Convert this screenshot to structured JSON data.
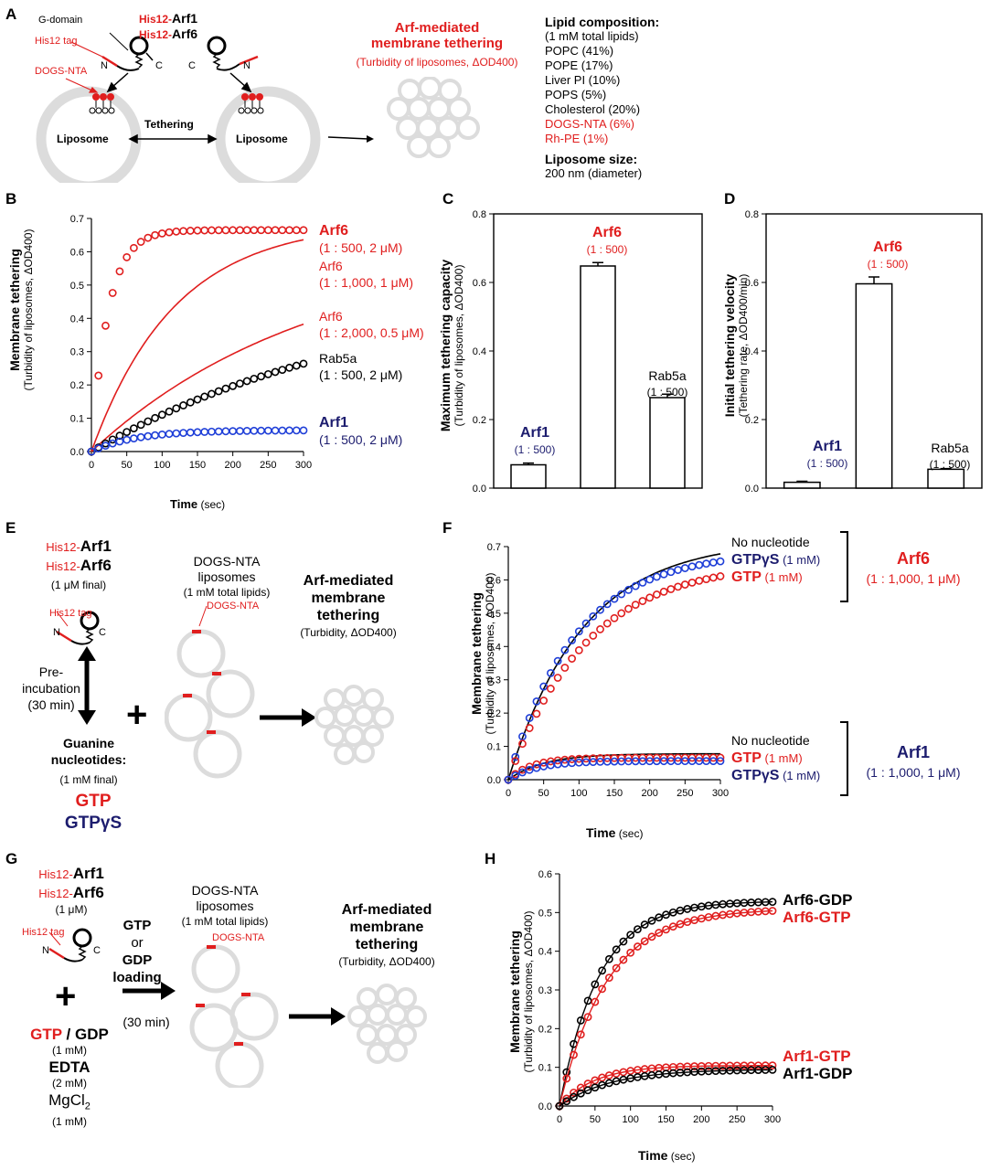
{
  "panels": {
    "a": "A",
    "b": "B",
    "c": "C",
    "d": "D",
    "e": "E",
    "f": "F",
    "g": "G",
    "h": "H"
  },
  "a": {
    "gdomain": "G-domain",
    "his1": "His12-",
    "arf1": "Arf1",
    "his2": "His12-",
    "arf6": "Arf6",
    "histag": "His12 tag",
    "dogs": "DOGS-NTA",
    "n1": "N",
    "c1": "C",
    "c2": "C",
    "n2": "N",
    "lipo1": "Liposome",
    "lipo2": "Liposome",
    "tether": "Tethering",
    "title1": "Arf-mediated",
    "title2": "membrane tethering",
    "subtitle": "(Turbidity of liposomes, ΔOD400)",
    "lipid_title": "Lipid composition:",
    "lipids": [
      "(1 mM total lipids)",
      "POPC (41%)",
      "POPE (17%)",
      "Liver PI (10%)",
      "POPS (5%)",
      "Cholesterol (20%)"
    ],
    "lipids_red": [
      "DOGS-NTA (6%)",
      "Rh-PE (1%)"
    ],
    "size_title": "Liposome size:",
    "size_value": "200 nm (diameter)"
  },
  "b": {
    "ylabel": "Membrane tethering",
    "ysub": "(Turbidity of liposomes, ΔOD400)",
    "xlabel": "Time",
    "xunit": " (sec)",
    "labels": [
      {
        "name": "Arf6",
        "cond": "(1 : 500, 2 μM)"
      },
      {
        "name": "Arf6",
        "cond": "(1 : 1,000, 1 μM)"
      },
      {
        "name": "Arf6",
        "cond": "(1 : 2,000, 0.5 μM)"
      },
      {
        "name": "Rab5a",
        "cond": "(1 : 500, 2 μM)"
      },
      {
        "name": "Arf1",
        "cond": "(1 : 500, 2 μM)"
      }
    ]
  },
  "c": {
    "ylabel": "Maximum tethering capacity",
    "ysub": "(Turbidity of liposomes, ΔOD400)",
    "bars": [
      {
        "name": "Arf1",
        "ratio": "(1 : 500)"
      },
      {
        "name": "Arf6",
        "ratio": "(1 : 500)"
      },
      {
        "name": "Rab5a",
        "ratio": "(1 : 500)"
      }
    ]
  },
  "d": {
    "ylabel": "Initial tethering velocity",
    "ysub": "(Tethering rate, ΔOD400/min)",
    "bars": [
      {
        "name": "Arf1",
        "ratio": "(1 : 500)"
      },
      {
        "name": "Arf6",
        "ratio": "(1 : 500)"
      },
      {
        "name": "Rab5a",
        "ratio": "(1 : 500)"
      }
    ]
  },
  "e": {
    "his1": "His12-",
    "arf1": "Arf1",
    "his2": "His12-",
    "arf6": "Arf6",
    "final": "(1 μM final)",
    "histag": "His12 tag",
    "n": "N",
    "c": "C",
    "pre1": "Pre-",
    "pre2": "incubation",
    "pre3": "(30 min)",
    "guan1": "Guanine",
    "guan2": "nucleotides:",
    "guan3": "(1 mM final)",
    "gtp": "GTP",
    "gtpgs": "GTPγS",
    "plus": "+",
    "lipo1": "DOGS-NTA",
    "lipo2": "liposomes",
    "lipo3": "(1 mM total lipids)",
    "dogs": "DOGS-NTA",
    "t1": "Arf-mediated",
    "t2": "membrane",
    "t3": "tethering",
    "t4": "(Turbidity, ΔOD400)"
  },
  "f": {
    "ylabel": "Membrane tethering",
    "ysub": "(Turbidity of liposomes, ΔOD400)",
    "xlabel": "Time",
    "xunit": " (sec)",
    "arf6_no": "No nucleotide",
    "arf6_gs": "GTPγS",
    "arf6_gs_c": " (1 mM)",
    "arf6_gtp": "GTP",
    "arf6_gtp_c": " (1 mM)",
    "arf6": "Arf6",
    "arf6_cond": "(1 : 1,000, 1 μM)",
    "arf1_no": "No nucleotide",
    "arf1_gtp": "GTP",
    "arf1_gtp_c": " (1 mM)",
    "arf1_gs": "GTPγS",
    "arf1_gs_c": " (1 mM)",
    "arf1": "Arf1",
    "arf1_cond": "(1 : 1,000, 1 μM)"
  },
  "g": {
    "his1": "His12-",
    "arf1": "Arf1",
    "his2": "His12-",
    "arf6": "Arf6",
    "conc": "(1 μM)",
    "histag": "His12 tag",
    "n": "N",
    "c": "C",
    "plus": "+",
    "gtp": "GTP",
    "slash": " / ",
    "gdp": "GDP",
    "gconc": "(1 mM)",
    "edta": "EDTA",
    "edta_c": "(2 mM)",
    "mg": "MgCl",
    "mg_sub": "2",
    "mg_c": "(1 mM)",
    "load1": "GTP",
    "load2": "or",
    "load3": "GDP",
    "load4": "loading",
    "load5": "(30 min)",
    "lipo1": "DOGS-NTA",
    "lipo2": "liposomes",
    "lipo3": "(1 mM total lipids)",
    "dogs": "DOGS-NTA",
    "t1": "Arf-mediated",
    "t2": "membrane",
    "t3": "tethering",
    "t4": "(Turbidity, ΔOD400)"
  },
  "h": {
    "ylabel": "Membrane tethering",
    "ysub": "(Turbidity of liposomes, ΔOD400)",
    "xlabel": "Time",
    "xunit": " (sec)",
    "l1": "Arf6-GDP",
    "l2": "Arf6-GTP",
    "l3": "Arf1-GTP",
    "l4": "Arf1-GDP"
  },
  "colors": {
    "red": "#e01e1e",
    "navy": "#1c1c6e",
    "blue": "#1f3fd8",
    "gray": "#dcdcdc"
  },
  "chart_data": [
    {
      "id": "B",
      "type": "line",
      "title": "",
      "xlabel": "Time (sec)",
      "ylabel": "Membrane tethering (Turbidity of liposomes, ΔOD400)",
      "xlim": [
        0,
        300
      ],
      "ylim": [
        0,
        0.7
      ],
      "xticks": [
        0,
        50,
        100,
        150,
        200,
        250,
        300
      ],
      "yticks": [
        0,
        0.1,
        0.2,
        0.3,
        0.4,
        0.5,
        0.6,
        0.7
      ],
      "series": [
        {
          "name": "Arf6 (1 : 500, 2 μM)",
          "style": "markers",
          "color": "#e01e1e",
          "A": 0.665,
          "k": 0.042
        },
        {
          "name": "Arf6 (1 : 1,000, 1 μM)",
          "style": "line",
          "color": "#e01e1e",
          "A": 0.69,
          "k": 0.0085
        },
        {
          "name": "Arf6 (1 : 2,000, 0.5 μM)",
          "style": "line",
          "color": "#e01e1e",
          "A": 0.62,
          "k": 0.0032
        },
        {
          "name": "Rab5a (1 : 500, 2 μM)",
          "style": "markers",
          "color": "#000000",
          "A": 0.5,
          "k": 0.0025
        },
        {
          "name": "Arf1 (1 : 500, 2 μM)",
          "style": "markers",
          "color": "#1f3fd8",
          "A": 0.064,
          "k": 0.016
        }
      ]
    },
    {
      "id": "C",
      "type": "bar",
      "categories": [
        "Arf1",
        "Arf6",
        "Rab5a"
      ],
      "values": [
        0.068,
        0.648,
        0.264
      ],
      "errors": [
        0.005,
        0.01,
        0.01
      ],
      "ylabel": "Maximum tethering capacity (Turbidity of liposomes, ΔOD400)",
      "ylim": [
        0,
        0.8
      ],
      "yticks": [
        0,
        0.2,
        0.4,
        0.6,
        0.8
      ]
    },
    {
      "id": "D",
      "type": "bar",
      "categories": [
        "Arf1",
        "Arf6",
        "Rab5a"
      ],
      "values": [
        0.017,
        0.596,
        0.055
      ],
      "errors": [
        0.003,
        0.02,
        0.002
      ],
      "ylabel": "Initial tethering velocity (Tethering rate, ΔOD400/min)",
      "ylim": [
        0,
        0.8
      ],
      "yticks": [
        0,
        0.2,
        0.4,
        0.6,
        0.8
      ]
    },
    {
      "id": "F",
      "type": "line",
      "xlabel": "Time (sec)",
      "ylabel": "Membrane tethering (Turbidity of liposomes, ΔOD400)",
      "xlim": [
        0,
        300
      ],
      "ylim": [
        0,
        0.7
      ],
      "xticks": [
        0,
        50,
        100,
        150,
        200,
        250,
        300
      ],
      "yticks": [
        0,
        0.1,
        0.2,
        0.3,
        0.4,
        0.5,
        0.6,
        0.7
      ],
      "series": [
        {
          "name": "Arf6 No nucleotide",
          "style": "line",
          "color": "#000000",
          "A": 0.72,
          "k": 0.0095
        },
        {
          "name": "Arf6 GTPγS (1 mM)",
          "style": "markers",
          "color": "#1f3fd8",
          "A": 0.685,
          "k": 0.0105
        },
        {
          "name": "Arf6 GTP (1 mM)",
          "style": "markers",
          "color": "#e01e1e",
          "A": 0.655,
          "k": 0.009
        },
        {
          "name": "Arf1 No nucleotide",
          "style": "line",
          "color": "#000000",
          "A": 0.078,
          "k": 0.02
        },
        {
          "name": "Arf1 GTP (1 mM)",
          "style": "markers",
          "color": "#e01e1e",
          "A": 0.066,
          "k": 0.03
        },
        {
          "name": "Arf1 GTPγS (1 mM)",
          "style": "markers",
          "color": "#1f3fd8",
          "A": 0.056,
          "k": 0.025
        }
      ]
    },
    {
      "id": "H",
      "type": "line",
      "xlabel": "Time (sec)",
      "ylabel": "Membrane tethering (Turbidity of liposomes, ΔOD400)",
      "xlim": [
        0,
        300
      ],
      "ylim": [
        0,
        0.6
      ],
      "xticks": [
        0,
        50,
        100,
        150,
        200,
        250,
        300
      ],
      "yticks": [
        0,
        0.1,
        0.2,
        0.3,
        0.4,
        0.5,
        0.6
      ],
      "series": [
        {
          "name": "Arf6-GDP",
          "style": "markers+line",
          "color": "#000000",
          "A": 0.53,
          "k": 0.018
        },
        {
          "name": "Arf6-GTP",
          "style": "markers+line",
          "color": "#e01e1e",
          "A": 0.51,
          "k": 0.015
        },
        {
          "name": "Arf1-GTP",
          "style": "markers+line",
          "color": "#e01e1e",
          "A": 0.105,
          "k": 0.02
        },
        {
          "name": "Arf1-GDP",
          "style": "markers+line",
          "color": "#000000",
          "A": 0.095,
          "k": 0.014
        }
      ]
    }
  ]
}
